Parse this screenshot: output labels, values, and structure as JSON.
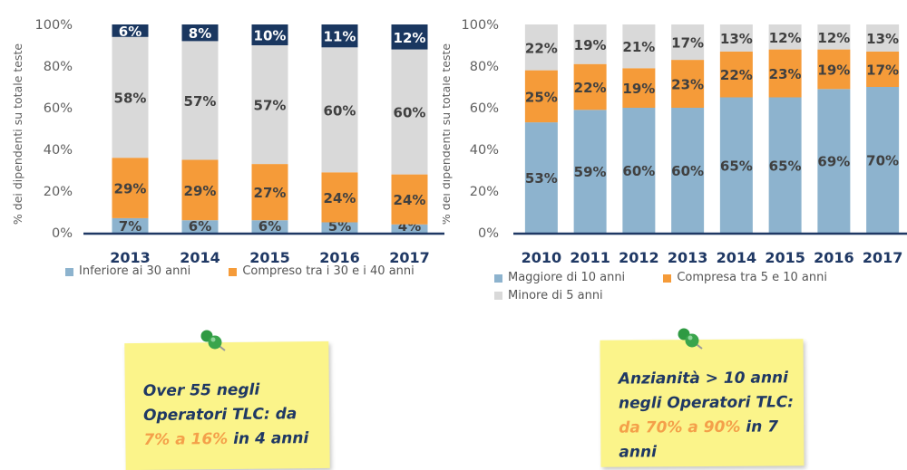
{
  "colors": {
    "navy": "#1a3760",
    "light_gray": "#d9d9d9",
    "orange": "#f59b39",
    "light_blue": "#8db3ce",
    "axis_text": "#606060",
    "note_bg": "#fbf48a",
    "note_text": "#1f3864",
    "note_highlight": "#f4a04a",
    "pin": "#3aa54c"
  },
  "chart_data": [
    {
      "type": "bar",
      "stacked": true,
      "ylabel": "% dei dipendenti su totale teste",
      "ylim": [
        0,
        100
      ],
      "yticks": [
        "0%",
        "20%",
        "40%",
        "60%",
        "80%",
        "100%"
      ],
      "categories": [
        "2013",
        "2014",
        "2015",
        "2016",
        "2017"
      ],
      "series": [
        {
          "name": "Inferiore ai 30 anni",
          "color": "#8db3ce",
          "values": [
            7,
            6,
            6,
            5,
            4
          ],
          "labels": [
            "7%",
            "6%",
            "6%",
            "5%",
            "4%"
          ]
        },
        {
          "name": "Compreso tra i 30 e i 40 anni",
          "color": "#f59b39",
          "values": [
            29,
            29,
            27,
            24,
            24
          ],
          "labels": [
            "29%",
            "29%",
            "27%",
            "24%",
            "24%"
          ]
        },
        {
          "name": "",
          "color": "#d9d9d9",
          "values": [
            58,
            57,
            57,
            60,
            60
          ],
          "labels": [
            "58%",
            "57%",
            "57%",
            "60%",
            "60%"
          ]
        },
        {
          "name": "",
          "color": "#1a3760",
          "values": [
            6,
            8,
            10,
            11,
            12
          ],
          "labels": [
            "6%",
            "8%",
            "10%",
            "11%",
            "12%"
          ]
        }
      ],
      "legend": [
        "Inferiore ai 30 anni",
        "Compreso tra i 30 e i 40 anni"
      ]
    },
    {
      "type": "bar",
      "stacked": true,
      "ylabel": "% dei dipendenti su totale teste",
      "ylim": [
        0,
        100
      ],
      "yticks": [
        "0%",
        "20%",
        "40%",
        "60%",
        "80%",
        "100%"
      ],
      "categories": [
        "2010",
        "2011",
        "2012",
        "2013",
        "2014",
        "2015",
        "2016",
        "2017"
      ],
      "series": [
        {
          "name": "Maggiore di 10 anni",
          "color": "#8db3ce",
          "values": [
            53,
            59,
            60,
            60,
            65,
            65,
            69,
            70
          ],
          "labels": [
            "53%",
            "59%",
            "60%",
            "60%",
            "65%",
            "65%",
            "69%",
            "70%"
          ]
        },
        {
          "name": "Compresa tra 5 e 10 anni",
          "color": "#f59b39",
          "values": [
            25,
            22,
            19,
            23,
            22,
            23,
            19,
            17
          ],
          "labels": [
            "25%",
            "22%",
            "19%",
            "23%",
            "22%",
            "23%",
            "19%",
            "17%"
          ]
        },
        {
          "name": "Minore di 5 anni",
          "color": "#d9d9d9",
          "values": [
            22,
            19,
            21,
            17,
            13,
            12,
            12,
            13
          ],
          "labels": [
            "22%",
            "19%",
            "21%",
            "17%",
            "13%",
            "12%",
            "12%",
            "13%"
          ]
        }
      ],
      "legend": [
        "Maggiore di 10 anni",
        "Compresa tra 5 e 10 anni",
        "Minore di 5 anni"
      ]
    }
  ],
  "notes": [
    {
      "line1": "Over 55 negli",
      "line2": "Operatori TLC: da",
      "line3_highlight": "7% a 16%",
      "line3_rest": " in 4 anni"
    },
    {
      "line1": "Anzianità > 10 anni",
      "line2": "negli Operatori TLC:",
      "line3_highlight": "da 70% a 90%",
      "line3_rest": " in 7",
      "line4": "anni"
    }
  ]
}
